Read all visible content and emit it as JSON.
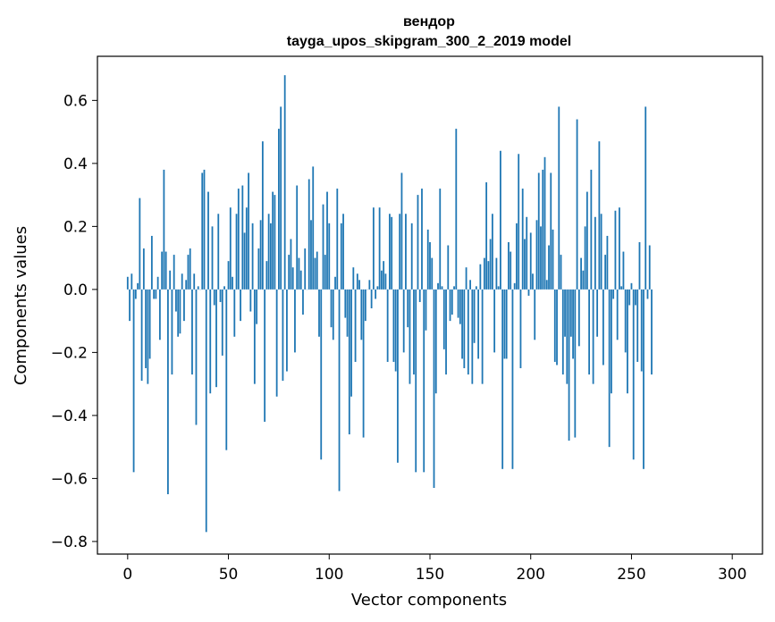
{
  "chart_data": {
    "type": "bar",
    "title_line1": "вендор",
    "title_line2": "tayga_upos_skipgram_300_2_2019 model",
    "xlabel": "Vector components",
    "ylabel": "Components values",
    "xlim": [
      -15,
      315
    ],
    "ylim": [
      -0.84,
      0.74
    ],
    "xticks": [
      0,
      50,
      100,
      150,
      200,
      250,
      300
    ],
    "xtick_labels": [
      "0",
      "50",
      "100",
      "150",
      "200",
      "250",
      "300"
    ],
    "yticks": [
      -0.8,
      -0.6,
      -0.4,
      -0.2,
      0.0,
      0.2,
      0.4,
      0.6
    ],
    "ytick_labels": [
      "−0.8",
      "−0.6",
      "−0.4",
      "−0.2",
      "0.0",
      "0.2",
      "0.4",
      "0.6"
    ],
    "grid": false,
    "bar_color": "#1f77b4",
    "values": [
      0.04,
      -0.1,
      0.05,
      -0.58,
      -0.03,
      0.02,
      0.29,
      -0.29,
      0.13,
      -0.25,
      -0.3,
      -0.22,
      0.17,
      -0.03,
      -0.03,
      0.04,
      -0.16,
      0.12,
      0.38,
      0.12,
      -0.65,
      0.06,
      -0.27,
      0.11,
      -0.07,
      -0.15,
      -0.14,
      0.05,
      -0.1,
      0.03,
      0.11,
      0.13,
      -0.27,
      0.05,
      -0.43,
      0.01,
      0.0,
      0.37,
      0.38,
      -0.77,
      0.31,
      -0.33,
      0.2,
      -0.05,
      -0.31,
      0.24,
      -0.04,
      -0.21,
      0.01,
      -0.51,
      0.09,
      0.26,
      0.04,
      -0.15,
      0.24,
      0.32,
      -0.1,
      0.33,
      0.18,
      0.26,
      0.37,
      -0.07,
      0.21,
      -0.3,
      -0.11,
      0.13,
      0.22,
      0.47,
      -0.42,
      0.09,
      0.24,
      0.21,
      0.31,
      0.3,
      -0.34,
      0.51,
      0.58,
      -0.29,
      0.68,
      -0.26,
      0.11,
      0.16,
      0.07,
      -0.2,
      0.33,
      0.1,
      0.06,
      -0.08,
      0.13,
      0.0,
      0.35,
      0.22,
      0.39,
      0.1,
      0.12,
      -0.15,
      -0.54,
      0.27,
      0.11,
      0.31,
      0.21,
      -0.12,
      -0.16,
      0.04,
      0.32,
      -0.64,
      0.21,
      0.24,
      -0.09,
      -0.15,
      -0.46,
      -0.34,
      0.07,
      -0.23,
      0.05,
      0.03,
      -0.16,
      -0.47,
      -0.1,
      0.0,
      0.03,
      -0.06,
      0.26,
      -0.03,
      0.01,
      0.26,
      0.06,
      0.09,
      0.05,
      -0.23,
      0.24,
      0.23,
      -0.23,
      -0.26,
      -0.55,
      0.24,
      0.37,
      -0.2,
      0.24,
      -0.12,
      -0.3,
      0.21,
      -0.27,
      -0.58,
      0.3,
      -0.04,
      0.32,
      -0.58,
      -0.13,
      0.19,
      0.15,
      0.1,
      -0.63,
      -0.33,
      0.02,
      0.32,
      0.01,
      -0.19,
      -0.27,
      0.14,
      -0.1,
      -0.08,
      0.01,
      0.51,
      -0.09,
      -0.11,
      -0.22,
      -0.25,
      0.07,
      -0.27,
      0.03,
      -0.3,
      -0.17,
      0.01,
      -0.22,
      0.08,
      -0.3,
      0.1,
      0.34,
      0.09,
      0.16,
      0.24,
      -0.2,
      0.1,
      0.01,
      0.44,
      -0.57,
      -0.22,
      -0.22,
      0.15,
      0.12,
      -0.57,
      0.02,
      0.21,
      0.43,
      -0.25,
      0.32,
      0.16,
      0.23,
      -0.02,
      0.18,
      0.05,
      -0.16,
      0.22,
      0.37,
      0.2,
      0.38,
      0.42,
      0.03,
      0.14,
      0.37,
      0.19,
      -0.23,
      -0.24,
      0.58,
      0.11,
      -0.27,
      -0.15,
      -0.3,
      -0.48,
      -0.15,
      -0.22,
      -0.47,
      0.54,
      -0.18,
      0.1,
      0.06,
      0.2,
      0.31,
      -0.27,
      0.38,
      -0.3,
      0.23,
      -0.15,
      0.47,
      0.24,
      -0.24,
      0.11,
      0.17,
      -0.5,
      -0.33,
      -0.03,
      0.25,
      -0.16,
      0.26,
      0.01,
      0.12,
      -0.2,
      -0.33,
      -0.05,
      0.02,
      -0.54,
      -0.05,
      -0.23,
      0.15,
      -0.26,
      -0.57,
      0.58,
      -0.03,
      0.14,
      -0.27
    ]
  }
}
